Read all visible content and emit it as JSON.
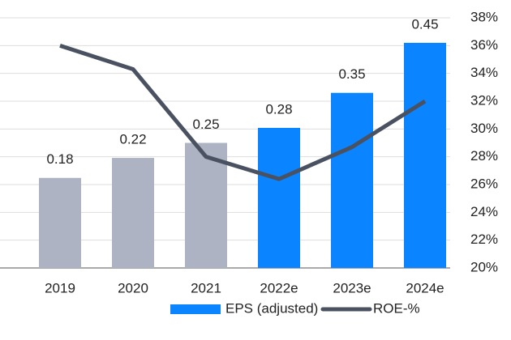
{
  "chart_data": {
    "type": "bar",
    "categories": [
      "2019",
      "2020",
      "2021",
      "2022e",
      "2023e",
      "2024e"
    ],
    "series": [
      {
        "name": "EPS (adjusted)",
        "type": "bar",
        "color": "#0a84ff",
        "colors": [
          "#adb3c2",
          "#adb3c2",
          "#adb3c2",
          "#0a84ff",
          "#0a84ff",
          "#0a84ff"
        ],
        "values": [
          0.18,
          0.22,
          0.25,
          0.28,
          0.35,
          0.45
        ]
      },
      {
        "name": "ROE-%",
        "type": "line",
        "axis": "y2",
        "color": "#4a5160",
        "values": [
          36,
          34.3,
          28,
          26.4,
          28.7,
          32
        ]
      }
    ],
    "ylim": [
      0,
      0.5
    ],
    "y2lim": [
      20,
      38
    ],
    "y2ticks": [
      {
        "value": 20,
        "label": "20%"
      },
      {
        "value": 22,
        "label": "22%"
      },
      {
        "value": 24,
        "label": "24%"
      },
      {
        "value": 26,
        "label": "26%"
      },
      {
        "value": 28,
        "label": "28%"
      },
      {
        "value": 30,
        "label": "30%"
      },
      {
        "value": 32,
        "label": "32%"
      },
      {
        "value": 34,
        "label": "34%"
      },
      {
        "value": 36,
        "label": "36%"
      },
      {
        "value": 38,
        "label": "38%"
      }
    ],
    "grid": true,
    "legend": "bottom"
  }
}
